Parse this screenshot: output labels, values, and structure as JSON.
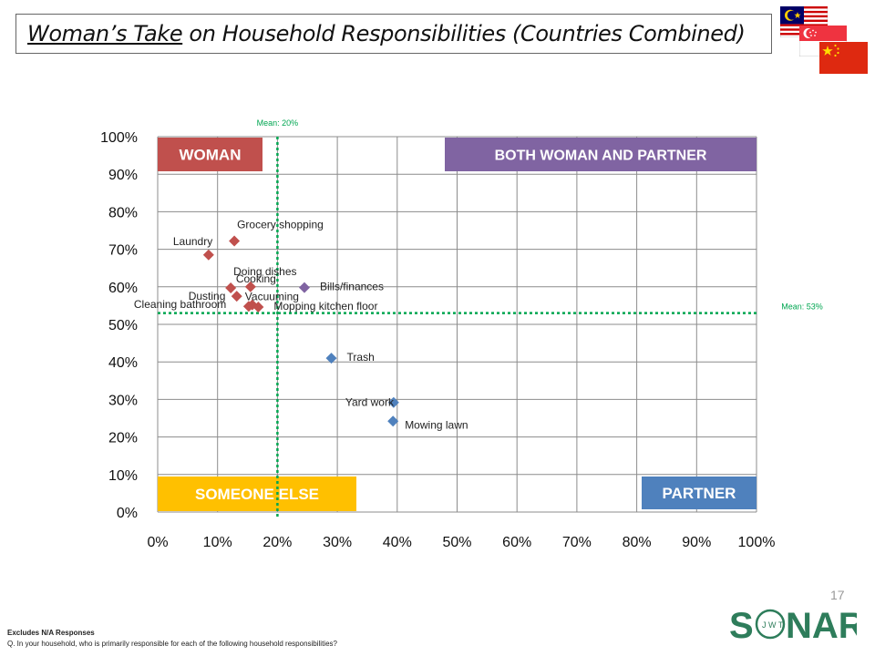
{
  "title": {
    "underlined": "Woman’s Take",
    "rest": " on Household Responsibilities (Countries Combined)"
  },
  "footer": {
    "note1": "Excludes N/A Responses",
    "note2": "Q. In your household, who is primarily responsible for each of the following household responsibilities?"
  },
  "page_number": "17",
  "logo": {
    "text_s": "S",
    "text_j": "J",
    "text_w": "W",
    "text_t": "T",
    "text_rest": "NAR",
    "color": "#2e7d5b"
  },
  "flags": [
    "malaysia-flag",
    "singapore-flag",
    "china-flag"
  ],
  "chart_data": {
    "type": "scatter",
    "title": "",
    "xlabel": "",
    "ylabel": "",
    "xlim": [
      0,
      100
    ],
    "ylim": [
      0,
      100
    ],
    "x_ticks": [
      "0%",
      "10%",
      "20%",
      "30%",
      "40%",
      "50%",
      "60%",
      "70%",
      "80%",
      "90%",
      "100%"
    ],
    "y_ticks": [
      "0%",
      "10%",
      "20%",
      "30%",
      "40%",
      "50%",
      "60%",
      "70%",
      "80%",
      "90%",
      "100%"
    ],
    "grid": true,
    "mean_x": {
      "value": 20,
      "label": "Mean: 20%"
    },
    "mean_y": {
      "value": 53,
      "label": "Mean: 53%"
    },
    "quadrants": [
      {
        "label": "WOMAN",
        "position": "top-left",
        "color": "#c0504d"
      },
      {
        "label": "BOTH WOMAN AND PARTNER",
        "position": "top-right",
        "color": "#8064a2"
      },
      {
        "label": "SOMEONE ELSE",
        "position": "bottom-left",
        "color": "#ffc000"
      },
      {
        "label": "PARTNER",
        "position": "bottom-right",
        "color": "#4f81bd"
      }
    ],
    "colors": {
      "red": "#c0504d",
      "purple": "#8064a2",
      "blue": "#4f81bd",
      "mean_line": "#00a651"
    },
    "points": [
      {
        "label": "Laundry",
        "x": 8.5,
        "y": 68.5,
        "color": "red",
        "label_pos": "above-left"
      },
      {
        "label": "Grocery shopping",
        "x": 12.8,
        "y": 72.2,
        "color": "red",
        "label_pos": "above-right"
      },
      {
        "label": "Doing dishes",
        "x": 12.2,
        "y": 59.7,
        "color": "red",
        "label_pos": "above-right"
      },
      {
        "label": "Cooking",
        "x": 15.5,
        "y": 60.0,
        "color": "red",
        "label_pos": "left-above"
      },
      {
        "label": "Dusting",
        "x": 13.2,
        "y": 57.5,
        "color": "red",
        "label_pos": "left"
      },
      {
        "label": "Vacuuming",
        "x": 15.8,
        "y": 55.2,
        "color": "red",
        "label_pos": "right-above"
      },
      {
        "label": "Mopping kitchen floor",
        "x": 16.8,
        "y": 54.6,
        "color": "red",
        "label_pos": "right"
      },
      {
        "label": "Cleaning bathroom",
        "x": 15.2,
        "y": 54.8,
        "color": "red",
        "label_pos": "left-below"
      },
      {
        "label": "Bills/finances",
        "x": 24.5,
        "y": 59.8,
        "color": "purple",
        "label_pos": "right"
      },
      {
        "label": "Trash",
        "x": 29.0,
        "y": 41.0,
        "color": "blue",
        "label_pos": "right"
      },
      {
        "label": "Yard work",
        "x": 39.4,
        "y": 29.2,
        "color": "blue",
        "label_pos": "left"
      },
      {
        "label": "Mowing lawn",
        "x": 39.3,
        "y": 24.2,
        "color": "blue",
        "label_pos": "right-below"
      }
    ]
  }
}
